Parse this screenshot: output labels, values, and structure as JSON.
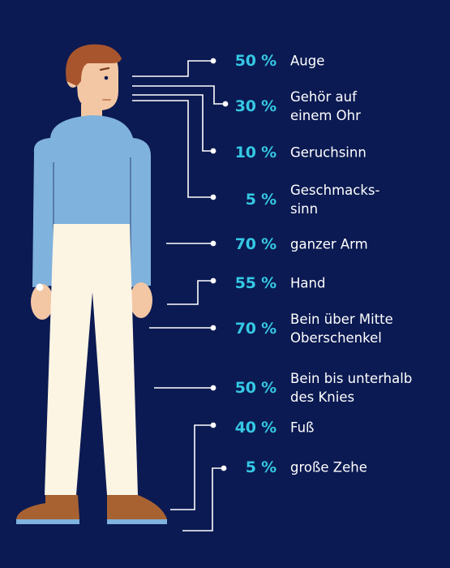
{
  "items": [
    {
      "percent": "50 %",
      "label": "Auge"
    },
    {
      "percent": "30 %",
      "label": "Gehör auf\neinem Ohr"
    },
    {
      "percent": "10 %",
      "label": "Geruchsinn"
    },
    {
      "percent": "5 %",
      "label": "Geschmacks-\nsinn"
    },
    {
      "percent": "70 %",
      "label": "ganzer Arm"
    },
    {
      "percent": "55 %",
      "label": "Hand"
    },
    {
      "percent": "70 %",
      "label": "Bein über Mitte\nOberschenkel"
    },
    {
      "percent": "50 %",
      "label": "Bein bis unterhalb\ndes Knies"
    },
    {
      "percent": "40 %",
      "label": "Fuß"
    },
    {
      "percent": "5 %",
      "label": "große Zehe"
    }
  ],
  "colors": {
    "background": "#0b1a52",
    "accent": "#35c8e4",
    "label": "#ffffff",
    "connector": "#ffffff",
    "skin": "#f3c7a4",
    "hair": "#a8552e",
    "shirt": "#7fb2dc",
    "trousers": "#fdf5e4",
    "shoes": "#a86232"
  }
}
